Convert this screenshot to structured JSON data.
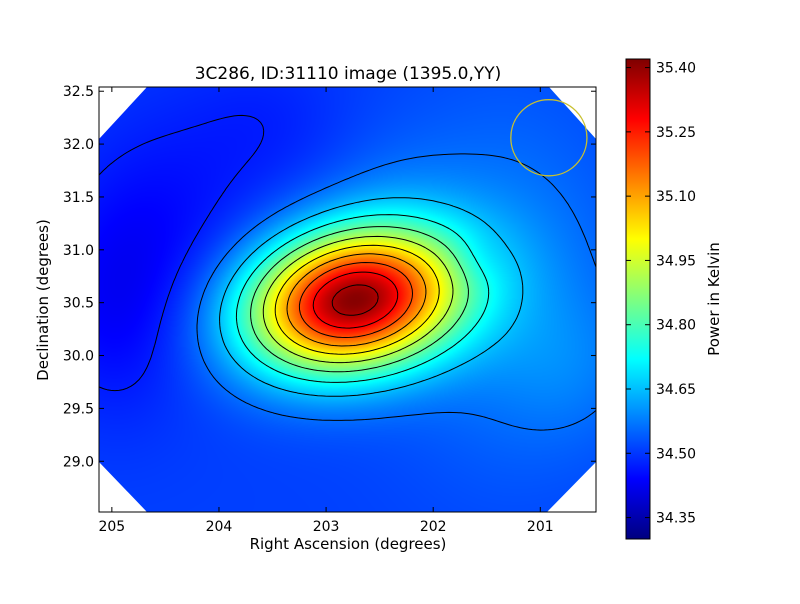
{
  "chart_data": {
    "type": "heatmap",
    "title": "3C286, ID:31110 image (1395.0,YY)",
    "xlabel": "Right Ascension (degrees)",
    "ylabel": "Declination (degrees)",
    "xlim": [
      205.12,
      200.48
    ],
    "ylim": [
      28.52,
      32.54
    ],
    "x_ticks": [
      205,
      204,
      203,
      202,
      201
    ],
    "x_tick_labels": [
      "205",
      "204",
      "203",
      "202",
      "201"
    ],
    "y_ticks": [
      29.0,
      29.5,
      30.0,
      30.5,
      31.0,
      31.5,
      32.0,
      32.5
    ],
    "y_tick_labels": [
      "29.0",
      "29.5",
      "30.0",
      "30.5",
      "31.0",
      "31.5",
      "32.0",
      "32.5"
    ],
    "colorbar": {
      "label": "Power in Kelvin",
      "min": 34.3,
      "max": 35.42,
      "ticks": [
        34.35,
        34.5,
        34.65,
        34.8,
        34.95,
        35.1,
        35.25,
        35.4
      ],
      "tick_labels": [
        "34.35",
        "34.50",
        "34.65",
        "34.80",
        "34.95",
        "35.10",
        "35.25",
        "35.40"
      ]
    },
    "peak": {
      "ra": 202.75,
      "dec": 30.52,
      "value": 35.4
    },
    "contour_levels": [
      34.38,
      34.47,
      34.56,
      34.65,
      34.74,
      34.83,
      34.92,
      35.01,
      35.1,
      35.19,
      35.28,
      35.37
    ],
    "beam_circle": {
      "ra": 200.92,
      "dec": 32.06,
      "radius_deg": 0.36,
      "color": "#c8c030"
    },
    "colors": {
      "jet": [
        "#00007f",
        "#0000ff",
        "#007fff",
        "#00ffff",
        "#7fff7f",
        "#ffff00",
        "#ff7f00",
        "#ff0000",
        "#7f0000"
      ],
      "contour": "#000000",
      "frame": "#000000"
    }
  }
}
